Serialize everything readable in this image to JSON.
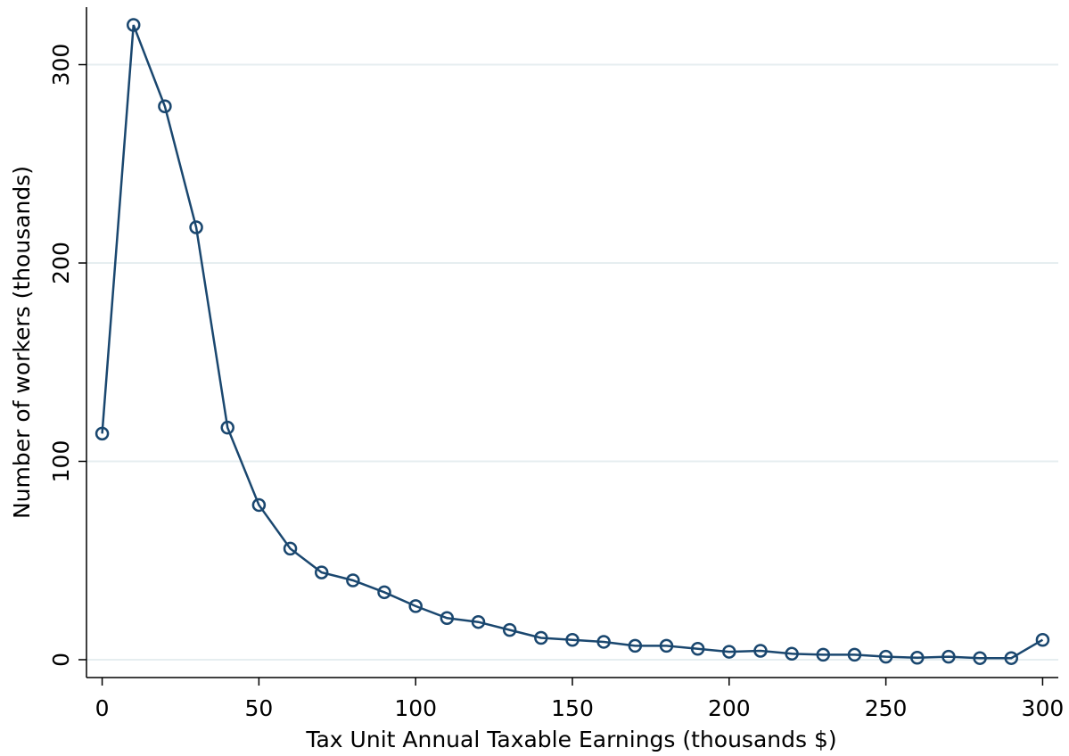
{
  "chart_data": {
    "type": "line",
    "x_label": "Tax Unit Annual Taxable Earnings (thousands $)",
    "y_label": "Number of workers (thousands)",
    "x": [
      0,
      10,
      20,
      30,
      40,
      50,
      60,
      70,
      80,
      90,
      100,
      110,
      120,
      130,
      140,
      150,
      160,
      170,
      180,
      190,
      200,
      210,
      220,
      230,
      240,
      250,
      260,
      270,
      280,
      290,
      300
    ],
    "series": [
      {
        "color": "#1a476f",
        "values": [
          114,
          320,
          279,
          218,
          117,
          78,
          56,
          44,
          40,
          34,
          27,
          21,
          19,
          15,
          11,
          10,
          9,
          7,
          7,
          5.5,
          4,
          4.5,
          3,
          2.5,
          2.5,
          1.5,
          1,
          1.5,
          0.8,
          0.8,
          10
        ]
      }
    ],
    "xlim": [
      -5,
      305
    ],
    "ylim": [
      -9,
      329
    ],
    "xticks": [
      0,
      50,
      100,
      150,
      200,
      250,
      300
    ],
    "yticks": [
      0,
      100,
      200,
      300
    ],
    "grid": true,
    "grid_color": "#e6eef0"
  }
}
